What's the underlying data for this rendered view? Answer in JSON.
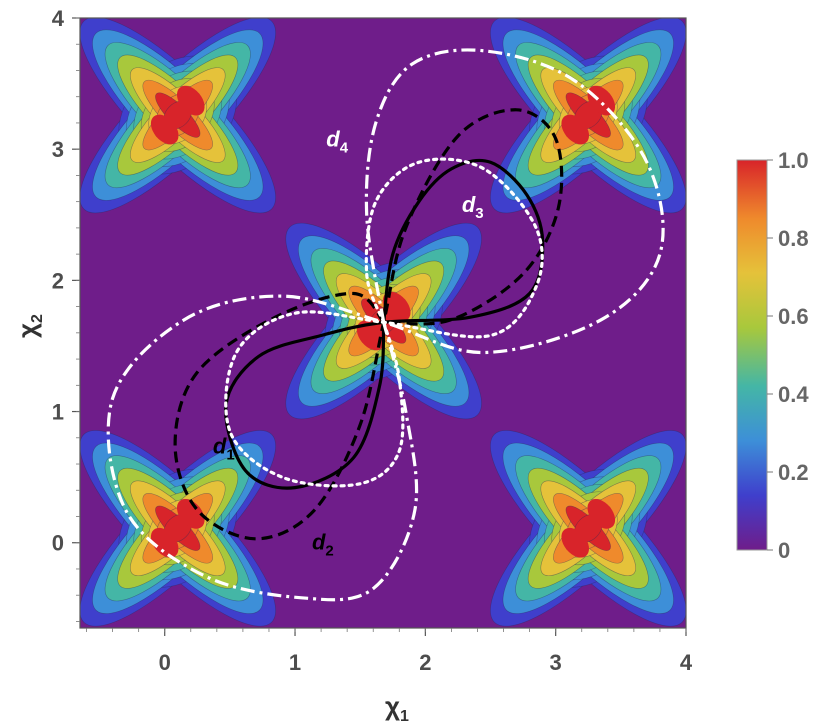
{
  "chart_data": {
    "type": "heatmap",
    "title": "",
    "xlabel": {
      "main": "χ",
      "sub": "1"
    },
    "ylabel": {
      "main": "χ",
      "sub": "2"
    },
    "xlim": [
      -0.65,
      4.0
    ],
    "ylim": [
      -0.65,
      4.0
    ],
    "x_ticks": [
      "0",
      "1",
      "2",
      "3",
      "4"
    ],
    "y_ticks": [
      "0",
      "1",
      "2",
      "3",
      "4"
    ],
    "x_tick_values": [
      0,
      1,
      2,
      3,
      4
    ],
    "y_tick_values": [
      0,
      1,
      2,
      3,
      4
    ],
    "colorbar": {
      "range": [
        0,
        1.0
      ],
      "ticks": [
        "0",
        "0.2",
        "0.4",
        "0.6",
        "0.8",
        "1.0"
      ],
      "tick_values": [
        0,
        0.2,
        0.4,
        0.6,
        0.8,
        1.0
      ],
      "palette": [
        "#6f1d8a",
        "#3f3fcc",
        "#3d8fd8",
        "#44b6a6",
        "#a8c83c",
        "#e5c23a",
        "#ef8a2c",
        "#d8242a"
      ]
    },
    "peaks": [
      {
        "x": 0.0,
        "y": 0.0
      },
      {
        "x": 0.2,
        "y": 0.22
      },
      {
        "x": 0.0,
        "y": 3.15
      },
      {
        "x": 0.2,
        "y": 3.37
      },
      {
        "x": 3.15,
        "y": 0.0
      },
      {
        "x": 3.35,
        "y": 0.22
      },
      {
        "x": 3.15,
        "y": 3.15
      },
      {
        "x": 3.35,
        "y": 3.37
      },
      {
        "x": 1.58,
        "y": 1.58
      },
      {
        "x": 1.78,
        "y": 1.8
      }
    ],
    "curves": [
      {
        "name": "d1",
        "label": "d",
        "sub": "1",
        "style": "solid",
        "color": "#000000",
        "label_pos": {
          "x": 0.37,
          "y": 0.68
        },
        "label_color": "#000000",
        "points": [
          [
            1.68,
            1.68
          ],
          [
            1.75,
            2.2
          ],
          [
            1.95,
            2.6
          ],
          [
            2.2,
            2.85
          ],
          [
            2.5,
            2.9
          ],
          [
            2.78,
            2.65
          ],
          [
            2.9,
            2.3
          ],
          [
            2.8,
            1.9
          ],
          [
            2.35,
            1.72
          ],
          [
            1.68,
            1.68
          ],
          [
            1.2,
            1.58
          ],
          [
            0.72,
            1.42
          ],
          [
            0.47,
            1.05
          ],
          [
            0.62,
            0.55
          ],
          [
            1.0,
            0.42
          ],
          [
            1.45,
            0.65
          ],
          [
            1.65,
            1.2
          ],
          [
            1.68,
            1.68
          ]
        ]
      },
      {
        "name": "d2",
        "label": "d",
        "sub": "2",
        "style": "dashed",
        "color": "#000000",
        "label_pos": {
          "x": 1.13,
          "y": -0.05
        },
        "label_color": "#000000",
        "points": [
          [
            1.68,
            1.68
          ],
          [
            1.45,
            1.9
          ],
          [
            0.85,
            1.72
          ],
          [
            0.25,
            1.3
          ],
          [
            0.08,
            0.75
          ],
          [
            0.25,
            0.25
          ],
          [
            0.7,
            0.03
          ],
          [
            1.15,
            0.25
          ],
          [
            1.5,
            0.9
          ],
          [
            1.68,
            1.68
          ],
          [
            1.85,
            2.4
          ],
          [
            2.25,
            3.1
          ],
          [
            2.7,
            3.3
          ],
          [
            3.0,
            3.08
          ],
          [
            3.02,
            2.55
          ],
          [
            2.75,
            2.05
          ],
          [
            2.2,
            1.7
          ],
          [
            1.68,
            1.68
          ]
        ]
      },
      {
        "name": "d3",
        "label": "d",
        "sub": "3",
        "style": "dotted",
        "color": "#ffffff",
        "label_pos": {
          "x": 2.28,
          "y": 2.52
        },
        "label_color": "#ffffff",
        "points": [
          [
            1.68,
            1.68
          ],
          [
            1.55,
            2.05
          ],
          [
            1.62,
            2.6
          ],
          [
            1.95,
            2.9
          ],
          [
            2.45,
            2.85
          ],
          [
            2.85,
            2.4
          ],
          [
            2.85,
            1.95
          ],
          [
            2.5,
            1.58
          ],
          [
            1.68,
            1.68
          ],
          [
            1.0,
            1.75
          ],
          [
            0.55,
            1.45
          ],
          [
            0.5,
            0.85
          ],
          [
            0.9,
            0.5
          ],
          [
            1.5,
            0.45
          ],
          [
            1.8,
            0.7
          ],
          [
            1.8,
            1.25
          ],
          [
            1.68,
            1.68
          ]
        ]
      },
      {
        "name": "d4",
        "label": "d",
        "sub": "4",
        "style": "dashdot",
        "color": "#ffffff",
        "label_pos": {
          "x": 1.24,
          "y": 3.02
        },
        "label_color": "#ffffff",
        "points": [
          [
            1.68,
            1.68
          ],
          [
            1.55,
            2.5
          ],
          [
            1.62,
            3.2
          ],
          [
            1.9,
            3.65
          ],
          [
            2.45,
            3.75
          ],
          [
            3.15,
            3.52
          ],
          [
            3.7,
            2.9
          ],
          [
            3.8,
            2.2
          ],
          [
            3.35,
            1.7
          ],
          [
            2.45,
            1.45
          ],
          [
            1.68,
            1.68
          ],
          [
            0.9,
            1.88
          ],
          [
            0.15,
            1.7
          ],
          [
            -0.4,
            1.1
          ],
          [
            -0.3,
            0.25
          ],
          [
            0.3,
            -0.25
          ],
          [
            1.05,
            -0.42
          ],
          [
            1.6,
            -0.35
          ],
          [
            1.92,
            0.25
          ],
          [
            1.85,
            1.0
          ],
          [
            1.68,
            1.68
          ]
        ]
      }
    ]
  }
}
